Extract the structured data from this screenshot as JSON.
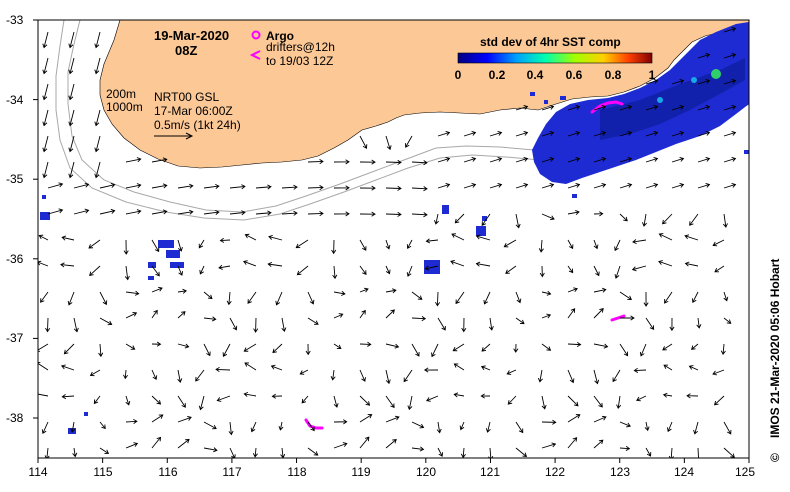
{
  "map": {
    "date": "19-Mar-2020",
    "time": "08Z",
    "legend": {
      "argo_label": "Argo",
      "drifters_line1": "drifters@12h",
      "drifters_line2": "to 19/03 12Z",
      "isobath_200": "200m",
      "isobath_1000": "1000m"
    },
    "source": {
      "product": "NRT00 GSL",
      "date": "17-Mar 06:00Z",
      "scale": "0.5m/s (1kt 24h)"
    },
    "colorbar": {
      "title": "std dev of 4hr SST comp",
      "ticks": [
        "0",
        "0.2",
        "0.4",
        "0.6",
        "0.8",
        "1"
      ],
      "range": [
        0,
        1
      ]
    },
    "credit": "IMOS 21-Mar-2020 05:06 Hobart",
    "copyright": "©",
    "axes": {
      "lon_ticks": [
        "114",
        "115",
        "116",
        "117",
        "118",
        "119",
        "120",
        "121",
        "122",
        "123",
        "124",
        "125"
      ],
      "lat_ticks": [
        "-33",
        "-34",
        "-35",
        "-36",
        "-37",
        "-38"
      ],
      "lon_range": [
        114,
        125
      ],
      "lat_range": [
        -38.5,
        -33
      ]
    },
    "colors": {
      "land": "#fcc896",
      "sst_high": "#1e2bd2",
      "sst_low": "#0a1a8c",
      "drifter": "#ff00ff",
      "arrow": "#000000",
      "isobath": "#a8a8a8"
    }
  }
}
